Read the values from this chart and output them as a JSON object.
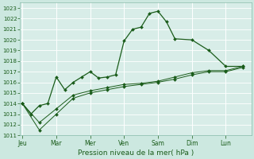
{
  "xlabel": "Pression niveau de la mer( hPa )",
  "bg_color": "#cce8e0",
  "plot_bg_color": "#d8ede8",
  "grid_color": "#b0d4cc",
  "line_color": "#1a5c1a",
  "ylim": [
    1011,
    1023.5
  ],
  "yticks": [
    1011,
    1012,
    1013,
    1014,
    1015,
    1016,
    1017,
    1018,
    1019,
    1020,
    1021,
    1022,
    1023
  ],
  "day_labels": [
    "Jeu",
    "Mar",
    "Mer",
    "Ven",
    "Sam",
    "Dim",
    "Lun"
  ],
  "day_positions": [
    0,
    4,
    8,
    12,
    16,
    20,
    24
  ],
  "xlim": [
    -0.3,
    27
  ],
  "series1": {
    "x": [
      0,
      1,
      2,
      3,
      4,
      5,
      6,
      7,
      8,
      9,
      10,
      11,
      12,
      13,
      14,
      15,
      16,
      17,
      18,
      20,
      22,
      24,
      26
    ],
    "y": [
      1014.0,
      1013.0,
      1013.8,
      1014.0,
      1016.5,
      1015.3,
      1016.0,
      1016.5,
      1017.0,
      1016.4,
      1016.5,
      1016.7,
      1019.9,
      1021.0,
      1021.2,
      1022.5,
      1022.7,
      1021.7,
      1020.1,
      1020.0,
      1019.0,
      1017.5,
      1017.5
    ]
  },
  "series2": {
    "x": [
      0,
      2,
      4,
      6,
      8,
      10,
      12,
      14,
      16,
      18,
      20,
      22,
      24,
      26
    ],
    "y": [
      1014.0,
      1012.2,
      1013.5,
      1014.8,
      1015.2,
      1015.5,
      1015.8,
      1015.9,
      1016.1,
      1016.5,
      1016.9,
      1017.1,
      1017.1,
      1017.5
    ]
  },
  "series3": {
    "x": [
      0,
      2,
      4,
      6,
      8,
      10,
      12,
      14,
      16,
      18,
      20,
      22,
      24,
      26
    ],
    "y": [
      1014.0,
      1011.5,
      1013.0,
      1014.5,
      1015.0,
      1015.3,
      1015.6,
      1015.8,
      1016.0,
      1016.3,
      1016.7,
      1017.0,
      1017.0,
      1017.4
    ]
  }
}
